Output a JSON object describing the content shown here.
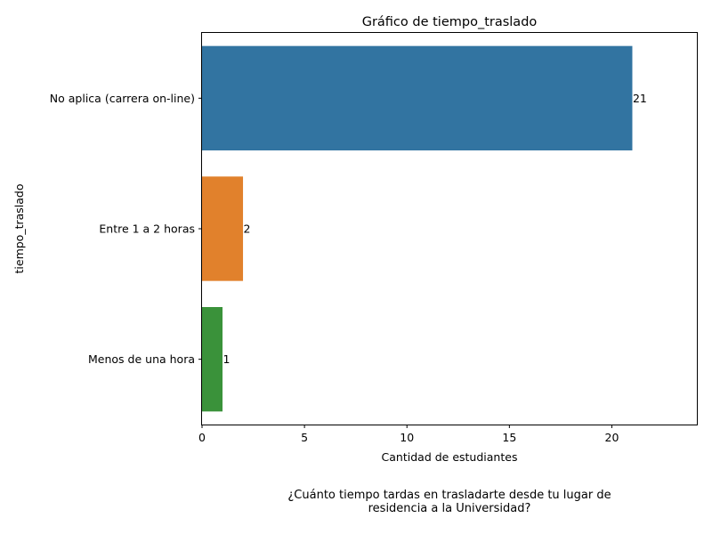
{
  "chart_data": {
    "type": "bar",
    "orientation": "horizontal",
    "title": "Gráfico de tiempo_traslado",
    "xlabel": "Cantidad de estudiantes",
    "ylabel": "tiempo_traslado",
    "categories": [
      "No aplica (carrera on-line)",
      "Entre 1 a 2 horas",
      "Menos de una hora"
    ],
    "values": [
      21,
      2,
      1
    ],
    "data_labels": [
      "21",
      "2",
      "1"
    ],
    "colors": [
      "#3274a1",
      "#e1812c",
      "#3a923a"
    ],
    "xlim": [
      0,
      24.15
    ],
    "xticks": [
      0,
      5,
      10,
      15,
      20
    ],
    "xtick_labels": [
      "0",
      "5",
      "10",
      "15",
      "20"
    ],
    "grid": false,
    "legend": "none"
  },
  "caption": {
    "line1": "¿Cuánto tiempo tardas en trasladarte desde tu lugar de",
    "line2": "residencia a la Universidad?"
  }
}
